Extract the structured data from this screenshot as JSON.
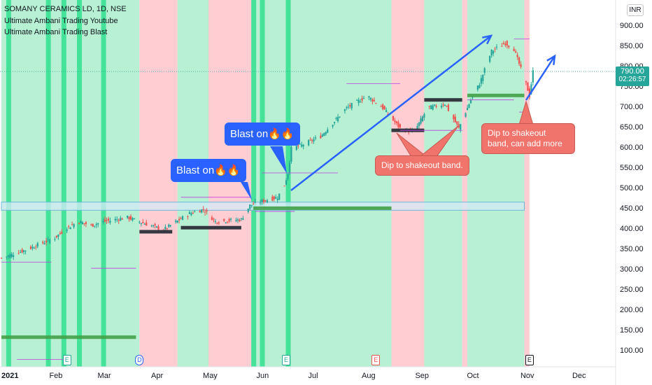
{
  "header": {
    "symbol": "SOMANY CERAMICS LD, 1D, NSE",
    "indicator_1": "Ultimate Ambani Trading Youtube",
    "indicator_2": "Ultimate Ambani Trading Blast"
  },
  "currency": "INR",
  "price_badge": {
    "price": "790.00",
    "countdown": "02:26:57",
    "color": "#26a69a"
  },
  "annotations": {
    "blast_1": "Blast on🔥🔥",
    "blast_2": "Blast on🔥🔥",
    "dip_1": "Dip to shakeout band.",
    "dip_2": "Dip to shakeout band, can add more"
  },
  "colors": {
    "bull_bg": "#b7f0d2",
    "bear_bg": "#ffcdd2",
    "blast_bar": "#45e39a",
    "up_candle": "#26a69a",
    "down_candle": "#ef5350",
    "trend_arrow": "#2962ff",
    "band": "#d3e9f5",
    "support_green": "#43a047"
  },
  "events": [
    {
      "label": "E",
      "date": "Feb 8"
    },
    {
      "label": "D",
      "date": "Mar 22"
    },
    {
      "label": "E",
      "date": "Jun 15"
    },
    {
      "label": "E",
      "date": "Aug 6"
    },
    {
      "label": "E",
      "date": "Nov 3"
    }
  ],
  "chart_data": {
    "type": "candlestick",
    "x_axis": {
      "start_label": "2021",
      "tick_labels": [
        "Feb",
        "Mar",
        "Apr",
        "May",
        "Jun",
        "Jul",
        "Aug",
        "Sep",
        "Oct",
        "Nov",
        "Dec"
      ]
    },
    "y_axis": {
      "tick_labels": [
        "900.00",
        "850.00",
        "800.00",
        "750.00",
        "700.00",
        "650.00",
        "600.00",
        "550.00",
        "500.00",
        "450.00",
        "400.00",
        "350.00",
        "300.00",
        "250.00",
        "200.00",
        "150.00",
        "100.00"
      ],
      "range": [
        65,
        960
      ]
    },
    "last_price": 790,
    "price_path": [
      [
        "2021-01-01",
        330
      ],
      [
        "2021-01-15",
        350
      ],
      [
        "2021-02-01",
        380
      ],
      [
        "2021-02-08",
        405
      ],
      [
        "2021-02-15",
        420
      ],
      [
        "2021-02-22",
        410
      ],
      [
        "2021-03-01",
        420
      ],
      [
        "2021-03-15",
        430
      ],
      [
        "2021-03-25",
        415
      ],
      [
        "2021-04-05",
        400
      ],
      [
        "2021-04-20",
        440
      ],
      [
        "2021-04-28",
        450
      ],
      [
        "2021-05-05",
        420
      ],
      [
        "2021-05-20",
        425
      ],
      [
        "2021-05-25",
        460
      ],
      [
        "2021-06-01",
        470
      ],
      [
        "2021-06-10",
        480
      ],
      [
        "2021-06-14",
        510
      ],
      [
        "2021-06-16",
        540
      ],
      [
        "2021-06-18",
        600
      ],
      [
        "2021-06-25",
        610
      ],
      [
        "2021-07-05",
        630
      ],
      [
        "2021-07-20",
        700
      ],
      [
        "2021-08-01",
        730
      ],
      [
        "2021-08-10",
        700
      ],
      [
        "2021-08-20",
        650
      ],
      [
        "2021-08-28",
        640
      ],
      [
        "2021-09-05",
        700
      ],
      [
        "2021-09-15",
        710
      ],
      [
        "2021-09-23",
        650
      ],
      [
        "2021-09-30",
        720
      ],
      [
        "2021-10-05",
        760
      ],
      [
        "2021-10-12",
        840
      ],
      [
        "2021-10-20",
        860
      ],
      [
        "2021-10-25",
        845
      ],
      [
        "2021-11-01",
        760
      ],
      [
        "2021-11-03",
        730
      ],
      [
        "2021-11-05",
        790
      ]
    ],
    "shakeout_band": {
      "from": 448,
      "to": 468,
      "start": "2021-01-01",
      "end": "2021-10-31"
    },
    "background_zones": [
      {
        "from": "2021-01-01",
        "to": "2021-03-22",
        "state": "bullish"
      },
      {
        "from": "2021-03-22",
        "to": "2021-04-13",
        "state": "bearish"
      },
      {
        "from": "2021-04-13",
        "to": "2021-05-01",
        "state": "bullish"
      },
      {
        "from": "2021-05-01",
        "to": "2021-05-27",
        "state": "bearish"
      },
      {
        "from": "2021-05-27",
        "to": "2021-08-15",
        "state": "bullish"
      },
      {
        "from": "2021-08-15",
        "to": "2021-09-03",
        "state": "bearish"
      },
      {
        "from": "2021-09-03",
        "to": "2021-09-25",
        "state": "bullish"
      },
      {
        "from": "2021-09-25",
        "to": "2021-09-28",
        "state": "bearish"
      },
      {
        "from": "2021-09-28",
        "to": "2021-10-31",
        "state": "bullish"
      },
      {
        "from": "2021-10-31",
        "to": "2021-11-03",
        "state": "bearish"
      }
    ],
    "blast_dates": [
      "2021-01-05",
      "2021-01-28",
      "2021-02-06",
      "2021-02-15",
      "2021-03-01",
      "2021-05-27",
      "2021-06-01",
      "2021-06-16"
    ],
    "support_lines": [
      {
        "price": 135,
        "start": "2021-01-01",
        "end": "2021-03-20",
        "color": "green"
      },
      {
        "price": 395,
        "start": "2021-03-22",
        "end": "2021-04-10",
        "color": "dark"
      },
      {
        "price": 405,
        "start": "2021-04-15",
        "end": "2021-05-20",
        "color": "dark"
      },
      {
        "price": 453,
        "start": "2021-05-27",
        "end": "2021-08-15",
        "color": "green"
      },
      {
        "price": 645,
        "start": "2021-08-15",
        "end": "2021-09-03",
        "color": "dark"
      },
      {
        "price": 720,
        "start": "2021-09-03",
        "end": "2021-09-25",
        "color": "dark"
      },
      {
        "price": 731,
        "start": "2021-09-28",
        "end": "2021-10-31",
        "color": "green"
      }
    ]
  }
}
